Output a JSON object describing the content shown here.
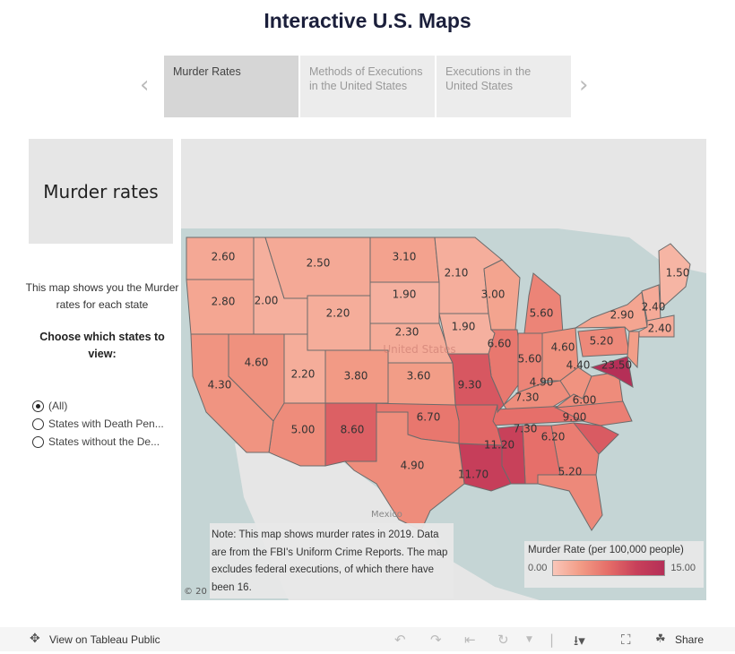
{
  "title": "Interactive U.S. Maps",
  "tabs": [
    {
      "label": "Murder Rates",
      "selected": true
    },
    {
      "label": "Methods of Executions in the United States",
      "selected": false
    },
    {
      "label": "Executions in the United States",
      "selected": false
    }
  ],
  "side": {
    "heading": "Murder rates",
    "description": "This map shows you the Murder rates for each state",
    "choose": "Choose which states to view:",
    "options": [
      {
        "label": "(All)",
        "selected": true
      },
      {
        "label": "States with Death Pen...",
        "selected": false
      },
      {
        "label": "States without the De...",
        "selected": false
      }
    ]
  },
  "map": {
    "country_label": "United States",
    "neighbor_label": "Mexico",
    "attribution": "© 20",
    "note": "Note: This map shows murder rates in 2019. Data are from the FBI's Uniform Crime Reports. The map excludes federal executions, of which there have been 16.",
    "legend": {
      "title": "Murder Rate (per 100,000 people)",
      "min": "0.00",
      "max": "15.00",
      "colors": [
        "#f9c6b9",
        "#f29b85",
        "#e56d68",
        "#c8405a",
        "#b52f57"
      ]
    },
    "states": [
      {
        "id": "WA",
        "value": "2.60"
      },
      {
        "id": "OR",
        "value": "2.80"
      },
      {
        "id": "ID",
        "value": "2.00"
      },
      {
        "id": "MT",
        "value": "2.50"
      },
      {
        "id": "WY",
        "value": "2.20"
      },
      {
        "id": "ND",
        "value": "3.10"
      },
      {
        "id": "SD",
        "value": "1.90"
      },
      {
        "id": "NE",
        "value": "2.30"
      },
      {
        "id": "MN",
        "value": "2.10"
      },
      {
        "id": "IA",
        "value": "1.90"
      },
      {
        "id": "WI",
        "value": "3.00"
      },
      {
        "id": "MI",
        "value": "5.60"
      },
      {
        "id": "IL",
        "value": "6.60"
      },
      {
        "id": "IN",
        "value": "5.60"
      },
      {
        "id": "OH",
        "value": "4.60"
      },
      {
        "id": "KY",
        "value": "4.90"
      },
      {
        "id": "TN",
        "value": "7.30"
      },
      {
        "id": "WV",
        "value": "4.40"
      },
      {
        "id": "VA",
        "value": null
      },
      {
        "id": "NC",
        "value": "6.00"
      },
      {
        "id": "SC",
        "value": "9.00"
      },
      {
        "id": "GA",
        "value": "6.20"
      },
      {
        "id": "FL",
        "value": "5.20"
      },
      {
        "id": "AL",
        "value": "7.30"
      },
      {
        "id": "MS",
        "value": "11.20"
      },
      {
        "id": "LA",
        "value": "11.70"
      },
      {
        "id": "AR",
        "value": null
      },
      {
        "id": "MO",
        "value": "9.30"
      },
      {
        "id": "KS",
        "value": "3.60"
      },
      {
        "id": "OK",
        "value": "6.70"
      },
      {
        "id": "TX",
        "value": "4.90"
      },
      {
        "id": "NM",
        "value": "8.60"
      },
      {
        "id": "AZ",
        "value": "5.00"
      },
      {
        "id": "CO",
        "value": "3.80"
      },
      {
        "id": "UT",
        "value": "2.20"
      },
      {
        "id": "NV",
        "value": "4.60"
      },
      {
        "id": "CA",
        "value": "4.30"
      },
      {
        "id": "PA",
        "value": "5.20"
      },
      {
        "id": "NY",
        "value": "2.90"
      },
      {
        "id": "MD",
        "value": "23.50"
      },
      {
        "id": "NJ",
        "value": null
      },
      {
        "id": "NH",
        "value": "2.40"
      },
      {
        "id": "CT",
        "value": "2.40"
      },
      {
        "id": "ME",
        "value": "1.50"
      }
    ]
  },
  "toolbar": {
    "view_label": "View on Tableau Public",
    "share_label": "Share"
  }
}
